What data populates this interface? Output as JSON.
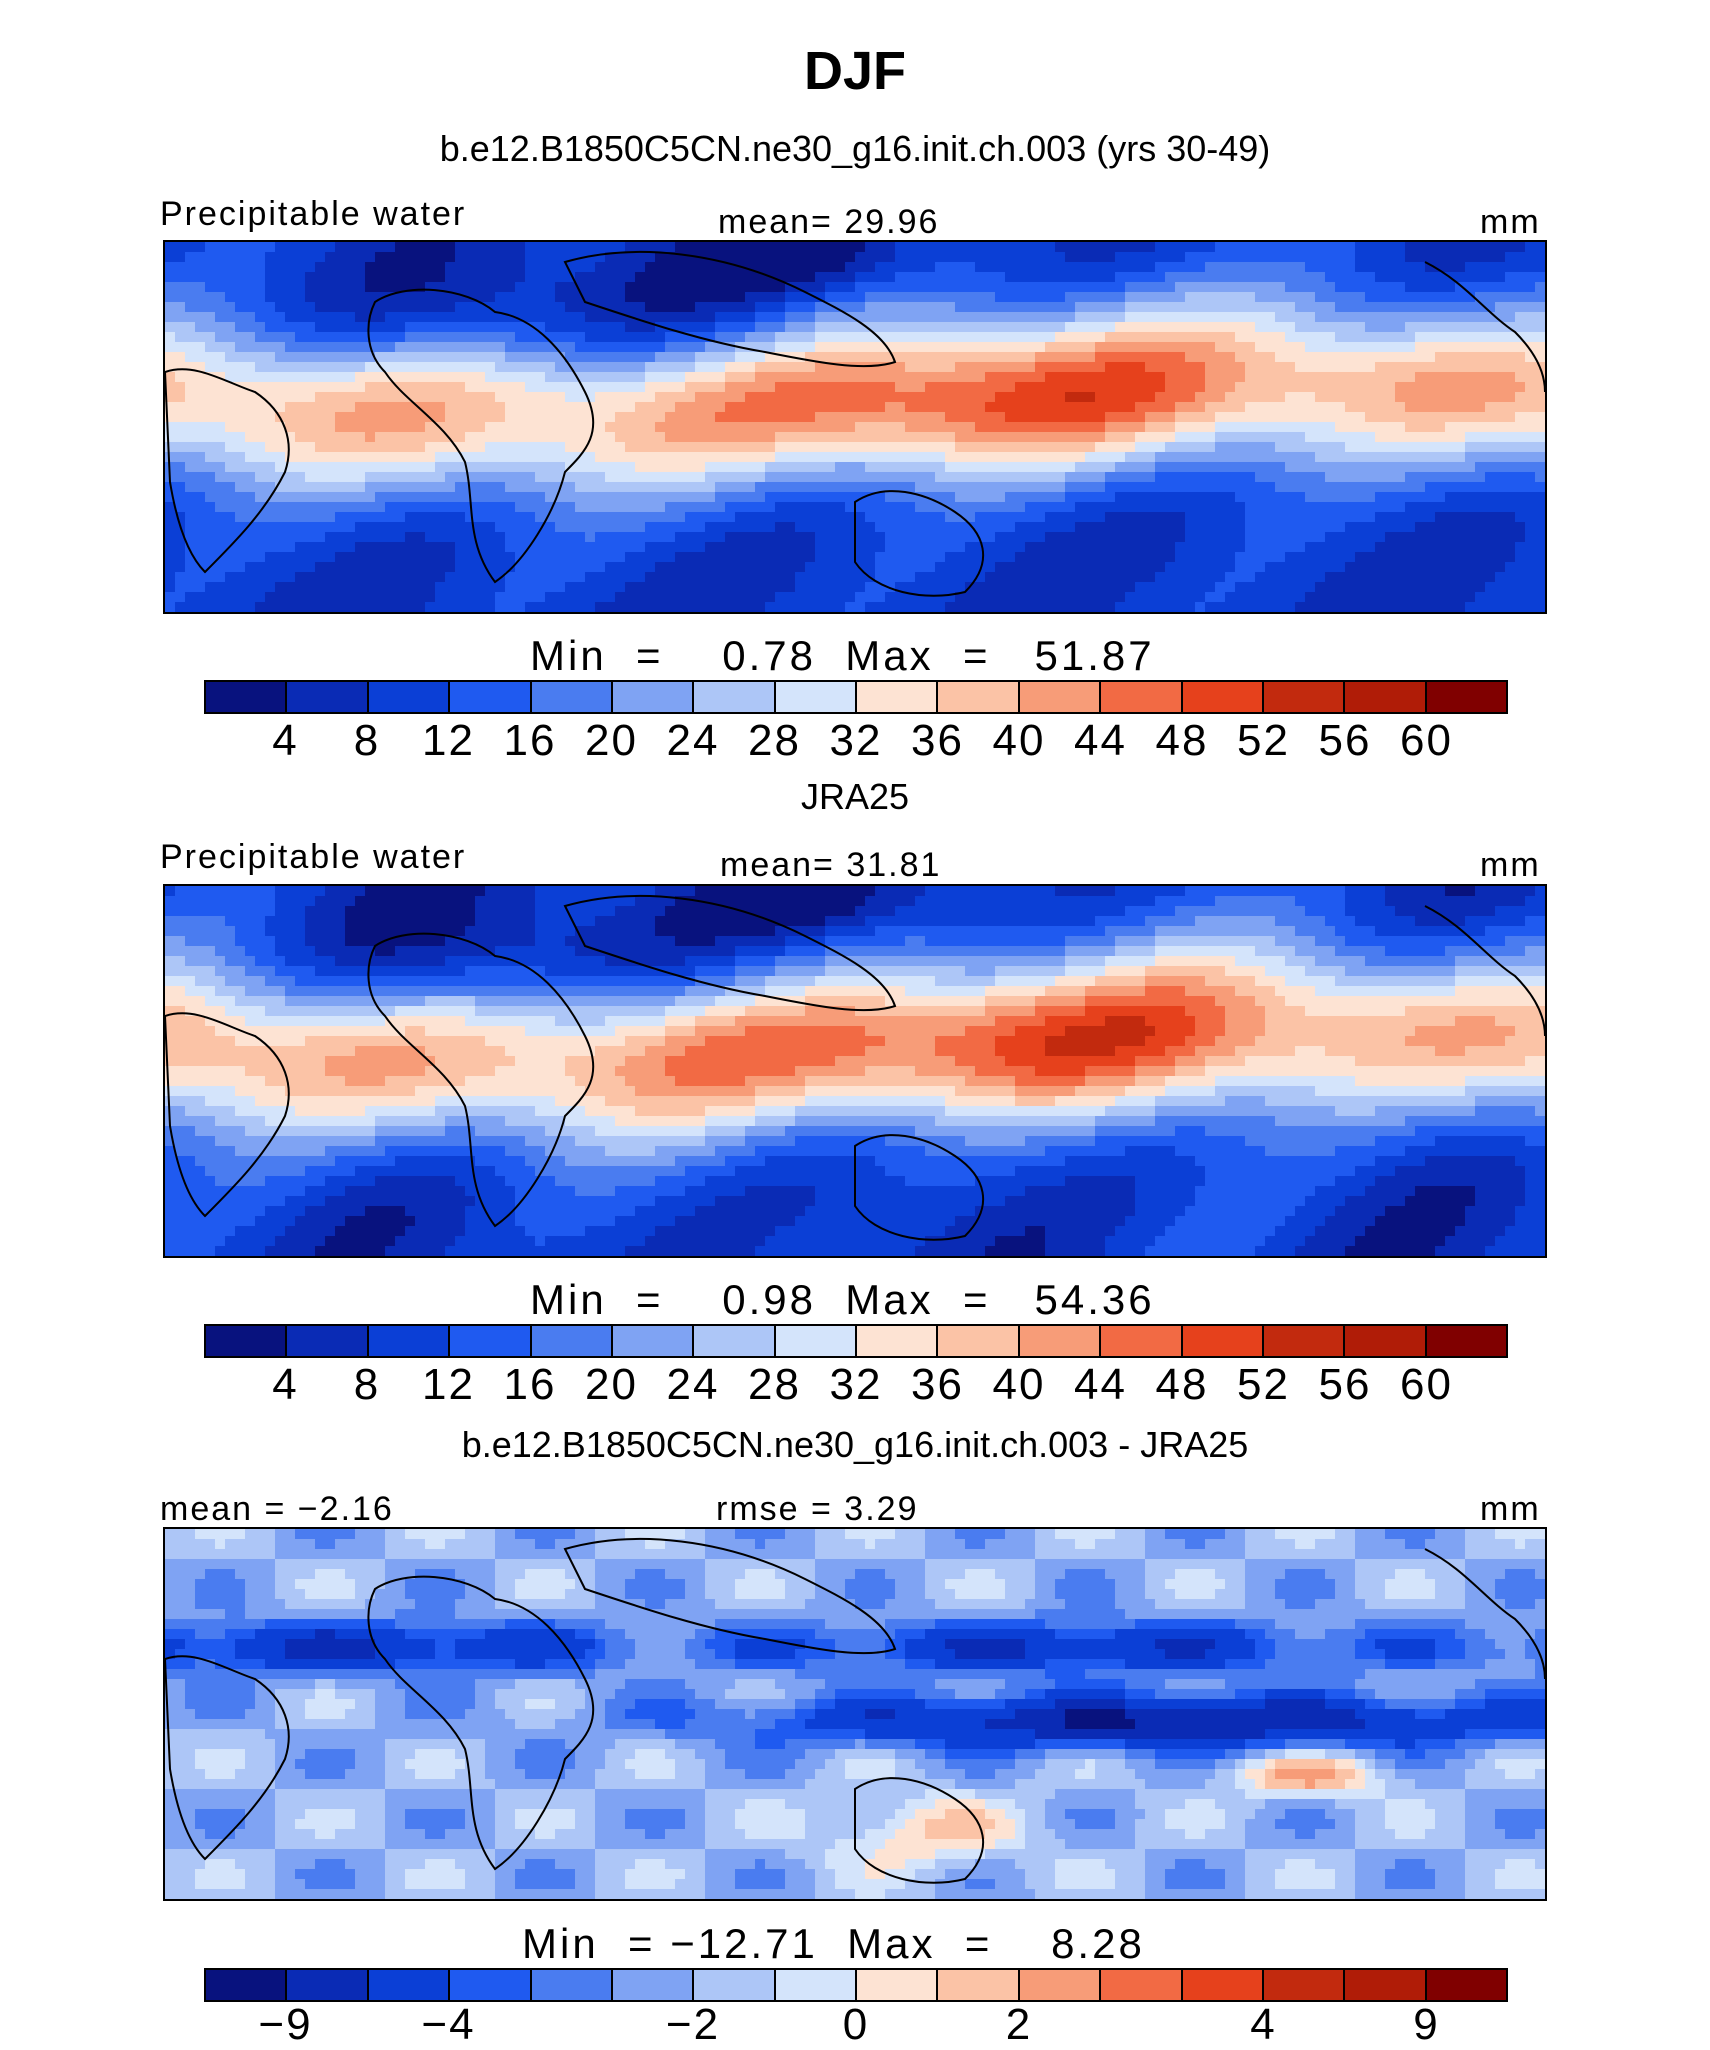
{
  "title": "DJF",
  "panels": [
    {
      "subtitle": "b.e12.B1850C5CN.ne30_g16.init.ch.003 (yrs 30-49)",
      "left_label": "Precipitable water",
      "center_label": "mean=   29.96",
      "right_label": "mm",
      "minmax": "Min  =    0.78  Max  =   51.87",
      "colorbar": {
        "ticks": [
          "4",
          "8",
          "12",
          "16",
          "20",
          "24",
          "28",
          "32",
          "36",
          "40",
          "44",
          "48",
          "52",
          "56",
          "60"
        ],
        "colors": [
          "#08127e",
          "#0a2bb5",
          "#0b3fd6",
          "#1f5af0",
          "#4a7cf0",
          "#7fa3f3",
          "#adc6f7",
          "#d4e4fb",
          "#fde3d3",
          "#fbc3a6",
          "#f79c78",
          "#f26a44",
          "#e6411c",
          "#c22a0e",
          "#b01c07",
          "#800000"
        ]
      },
      "field": "model"
    },
    {
      "subtitle": "JRA25",
      "left_label": "Precipitable water",
      "center_label": "mean=   31.81",
      "right_label": "mm",
      "minmax": "Min  =    0.98  Max  =   54.36",
      "colorbar": {
        "ticks": [
          "4",
          "8",
          "12",
          "16",
          "20",
          "24",
          "28",
          "32",
          "36",
          "40",
          "44",
          "48",
          "52",
          "56",
          "60"
        ],
        "colors": [
          "#08127e",
          "#0a2bb5",
          "#0b3fd6",
          "#1f5af0",
          "#4a7cf0",
          "#7fa3f3",
          "#adc6f7",
          "#d4e4fb",
          "#fde3d3",
          "#fbc3a6",
          "#f79c78",
          "#f26a44",
          "#e6411c",
          "#c22a0e",
          "#b01c07",
          "#800000"
        ]
      },
      "field": "obs"
    },
    {
      "subtitle": "b.e12.B1850C5CN.ne30_g16.init.ch.003 - JRA25",
      "left_label": "mean =   −2.16",
      "center_label": "rmse =    3.29",
      "right_label": "mm",
      "minmax": "Min  = −12.71  Max  =    8.28",
      "colorbar": {
        "ticks": [
          "−9",
          "−4",
          "−2",
          "0",
          "2",
          "4",
          "9"
        ],
        "colors": [
          "#08127e",
          "#0a2bb5",
          "#0b3fd6",
          "#1f5af0",
          "#4a7cf0",
          "#7fa3f3",
          "#adc6f7",
          "#d4e4fb",
          "#fde3d3",
          "#fbc3a6",
          "#f79c78",
          "#f26a44",
          "#e6411c",
          "#c22a0e",
          "#b01c07",
          "#800000"
        ]
      },
      "field": "diff"
    }
  ]
}
